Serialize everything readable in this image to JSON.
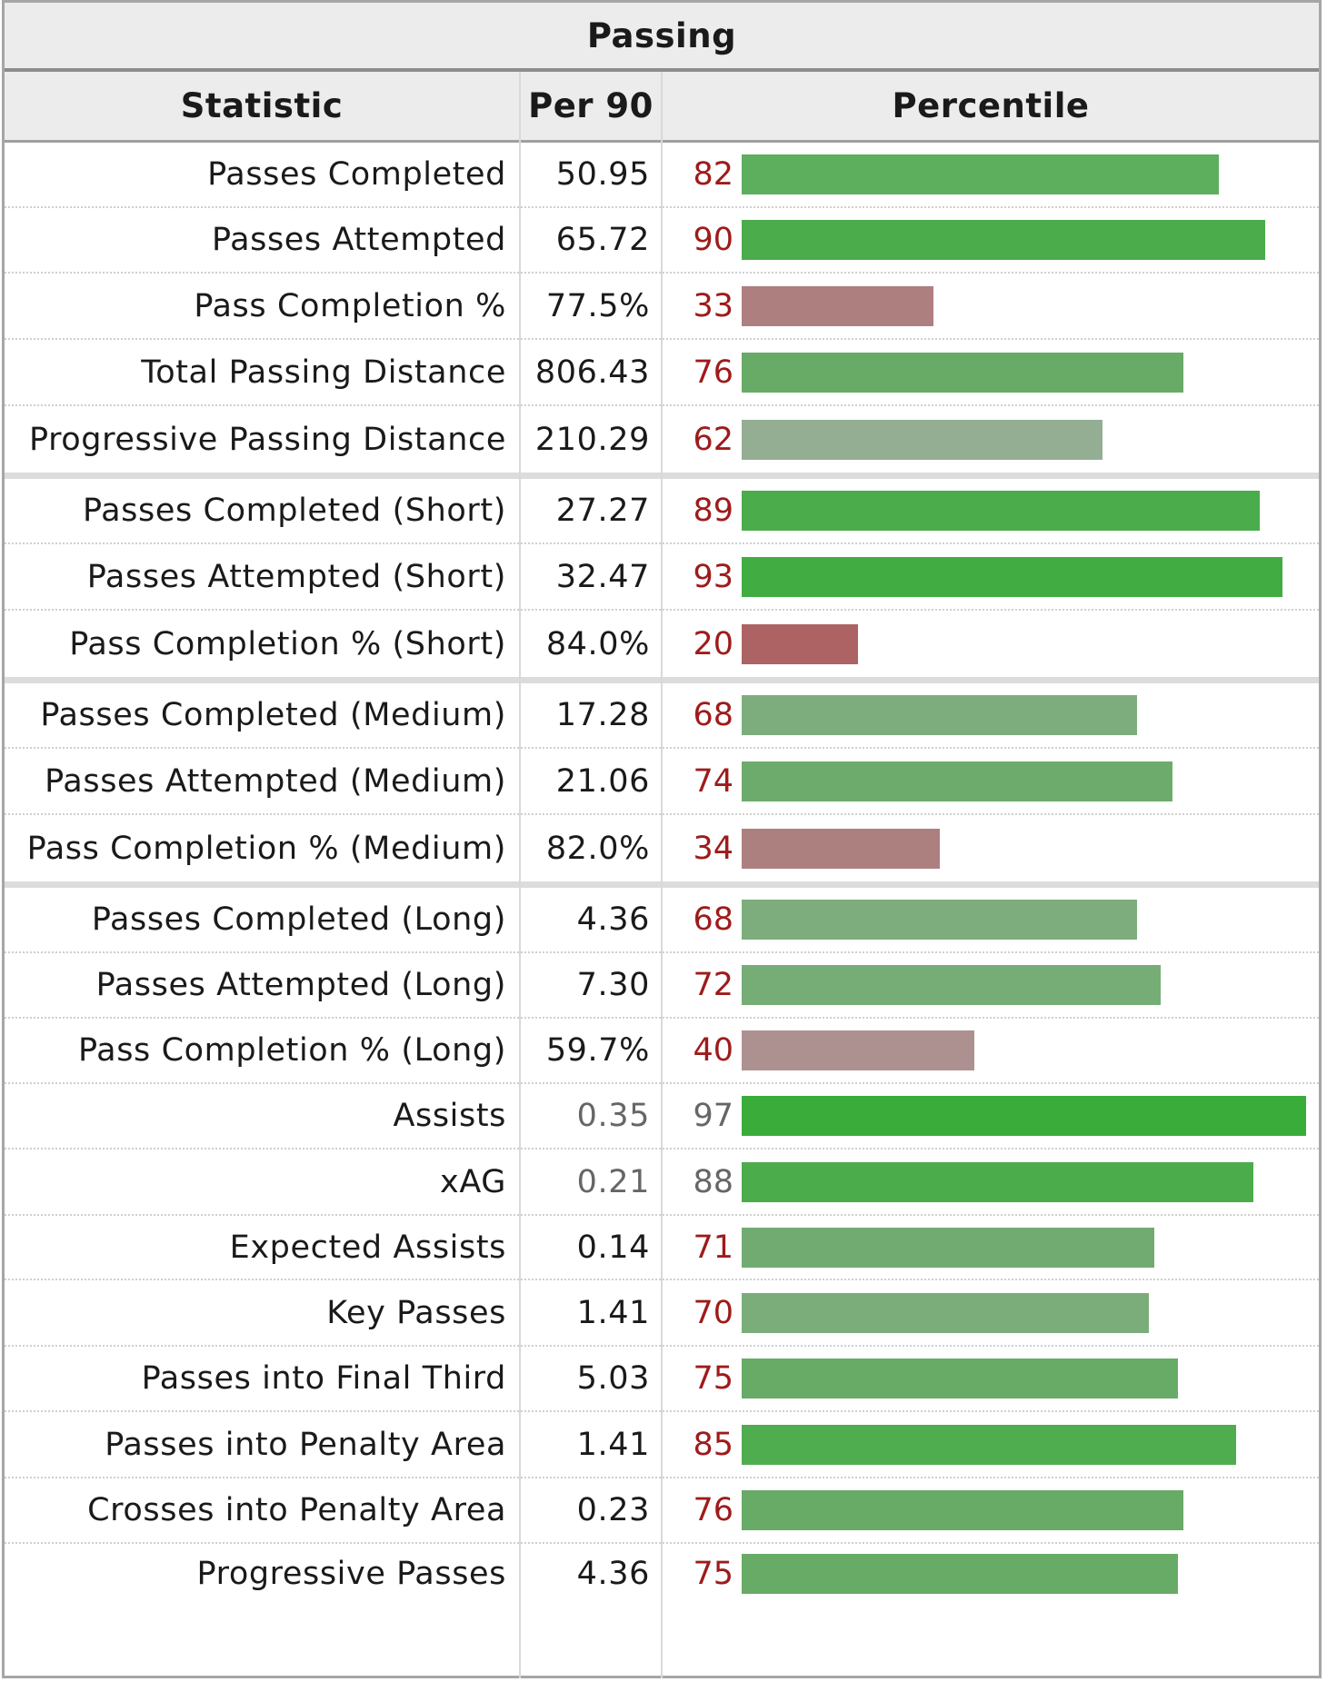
{
  "table": {
    "title": "Passing",
    "headers": {
      "statistic": "Statistic",
      "per90": "Per 90",
      "percentile": "Percentile"
    },
    "rows": [
      {
        "stat": "Passes Completed",
        "per90": "50.95",
        "percentile": 82,
        "bar_color": "#5dae5d"
      },
      {
        "stat": "Passes Attempted",
        "per90": "65.72",
        "percentile": 90,
        "bar_color": "#4aac4a"
      },
      {
        "stat": "Pass Completion %",
        "per90": "77.5%",
        "percentile": 33,
        "bar_color": "#ae7f7f"
      },
      {
        "stat": "Total Passing Distance",
        "per90": "806.43",
        "percentile": 76,
        "bar_color": "#67ab67"
      },
      {
        "stat": "Progressive Passing Distance",
        "per90": "210.29",
        "percentile": 62,
        "bar_color": "#93ae93"
      },
      {
        "stat": "Passes Completed (Short)",
        "per90": "27.27",
        "percentile": 89,
        "bar_color": "#4aac4a"
      },
      {
        "stat": "Passes Attempted (Short)",
        "per90": "32.47",
        "percentile": 93,
        "bar_color": "#41ac41"
      },
      {
        "stat": "Pass Completion % (Short)",
        "per90": "84.0%",
        "percentile": 20,
        "bar_color": "#ad6363"
      },
      {
        "stat": "Passes Completed (Medium)",
        "per90": "17.28",
        "percentile": 68,
        "bar_color": "#7dad7d"
      },
      {
        "stat": "Passes Attempted (Medium)",
        "per90": "21.06",
        "percentile": 74,
        "bar_color": "#6dab6d"
      },
      {
        "stat": "Pass Completion % (Medium)",
        "per90": "82.0%",
        "percentile": 34,
        "bar_color": "#ad8080"
      },
      {
        "stat": "Passes Completed (Long)",
        "per90": "4.36",
        "percentile": 68,
        "bar_color": "#7dad7d"
      },
      {
        "stat": "Passes Attempted (Long)",
        "per90": "7.30",
        "percentile": 72,
        "bar_color": "#76ac76"
      },
      {
        "stat": "Pass Completion % (Long)",
        "per90": "59.7%",
        "percentile": 40,
        "bar_color": "#ad9191"
      },
      {
        "stat": "Assists",
        "per90": "0.35",
        "percentile": 97,
        "bar_color": "#39ac39",
        "muted": true
      },
      {
        "stat": "xAG",
        "per90": "0.21",
        "percentile": 88,
        "bar_color": "#4aac4a",
        "muted": true
      },
      {
        "stat": "Expected Assists",
        "per90": "0.14",
        "percentile": 71,
        "bar_color": "#71ab71"
      },
      {
        "stat": "Key Passes",
        "per90": "1.41",
        "percentile": 70,
        "bar_color": "#7aad7a"
      },
      {
        "stat": "Passes into Final Third",
        "per90": "5.03",
        "percentile": 75,
        "bar_color": "#67ab67"
      },
      {
        "stat": "Passes into Penalty Area",
        "per90": "1.41",
        "percentile": 85,
        "bar_color": "#4fac4f"
      },
      {
        "stat": "Crosses into Penalty Area",
        "per90": "0.23",
        "percentile": 76,
        "bar_color": "#67ab67"
      },
      {
        "stat": "Progressive Passes",
        "per90": "4.36",
        "percentile": 75,
        "bar_color": "#67ab67"
      }
    ]
  }
}
